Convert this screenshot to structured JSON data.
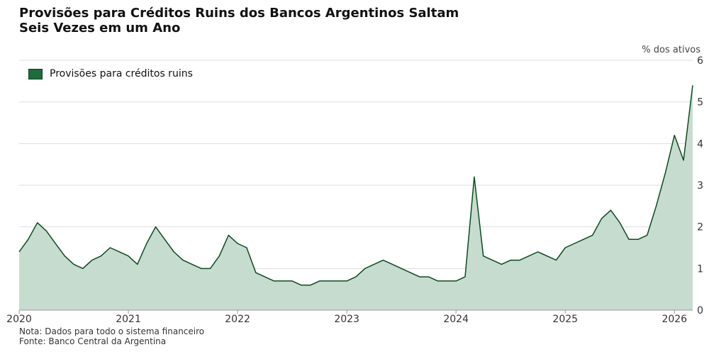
{
  "title_lines": [
    "Provisões para Créditos Ruins dos Bancos Argentinos Saltam",
    "Seis Vezes em um Ano"
  ],
  "unit_label": "% dos ativos",
  "footer": {
    "note": "Nota: Dados para todo o sistema financeiro",
    "source": "Fonte: Banco Central da Argentina"
  },
  "colors": {
    "fill": "#c6dccf",
    "line": "#0c4a1f",
    "legend_swatch": "#1e6b3c"
  },
  "chart_data": {
    "type": "area",
    "legend_position": "top-left",
    "grid": true,
    "series": [
      {
        "name": "Provisões para créditos ruins",
        "x": [
          2020.0,
          2020.083,
          2020.167,
          2020.25,
          2020.333,
          2020.417,
          2020.5,
          2020.583,
          2020.667,
          2020.75,
          2020.833,
          2020.917,
          2021.0,
          2021.083,
          2021.167,
          2021.25,
          2021.333,
          2021.417,
          2021.5,
          2021.583,
          2021.667,
          2021.75,
          2021.833,
          2021.917,
          2022.0,
          2022.083,
          2022.167,
          2022.25,
          2022.333,
          2022.417,
          2022.5,
          2022.583,
          2022.667,
          2022.75,
          2022.833,
          2022.917,
          2023.0,
          2023.083,
          2023.167,
          2023.25,
          2023.333,
          2023.417,
          2023.5,
          2023.583,
          2023.667,
          2023.75,
          2023.833,
          2023.917,
          2024.0,
          2024.083,
          2024.167,
          2024.25,
          2024.333,
          2024.417,
          2024.5,
          2024.583,
          2024.667,
          2024.75,
          2024.833,
          2024.917,
          2025.0,
          2025.083,
          2025.167,
          2025.25,
          2025.333,
          2025.417,
          2025.5,
          2025.583,
          2025.667,
          2025.75,
          2025.833,
          2025.917,
          2026.0,
          2026.083,
          2026.167
        ],
        "values": [
          1.4,
          1.7,
          2.1,
          1.9,
          1.6,
          1.3,
          1.1,
          1.0,
          1.2,
          1.3,
          1.5,
          1.4,
          1.3,
          1.1,
          1.6,
          2.0,
          1.7,
          1.4,
          1.2,
          1.1,
          1.0,
          1.0,
          1.3,
          1.8,
          1.6,
          1.5,
          0.9,
          0.8,
          0.7,
          0.7,
          0.7,
          0.6,
          0.6,
          0.7,
          0.7,
          0.7,
          0.7,
          0.8,
          1.0,
          1.1,
          1.2,
          1.1,
          1.0,
          0.9,
          0.8,
          0.8,
          0.7,
          0.7,
          0.7,
          0.8,
          3.2,
          1.3,
          1.2,
          1.1,
          1.2,
          1.2,
          1.3,
          1.4,
          1.3,
          1.2,
          1.5,
          1.6,
          1.7,
          1.8,
          2.2,
          2.4,
          2.1,
          1.7,
          1.7,
          1.8,
          2.5,
          3.3,
          4.2,
          3.6,
          5.4
        ]
      }
    ],
    "xlim": [
      2020,
      2026.167
    ],
    "ylim": [
      0,
      6
    ],
    "x_ticks": [
      2020,
      2021,
      2022,
      2023,
      2024,
      2025,
      2026
    ],
    "x_tick_labels": [
      "2020",
      "2021",
      "2022",
      "2023",
      "2024",
      "2025",
      "2026"
    ],
    "y_ticks": [
      0,
      1,
      2,
      3,
      4,
      5,
      6
    ],
    "y_tick_labels": [
      "0",
      "1",
      "2",
      "3",
      "4",
      "5",
      "6"
    ]
  }
}
